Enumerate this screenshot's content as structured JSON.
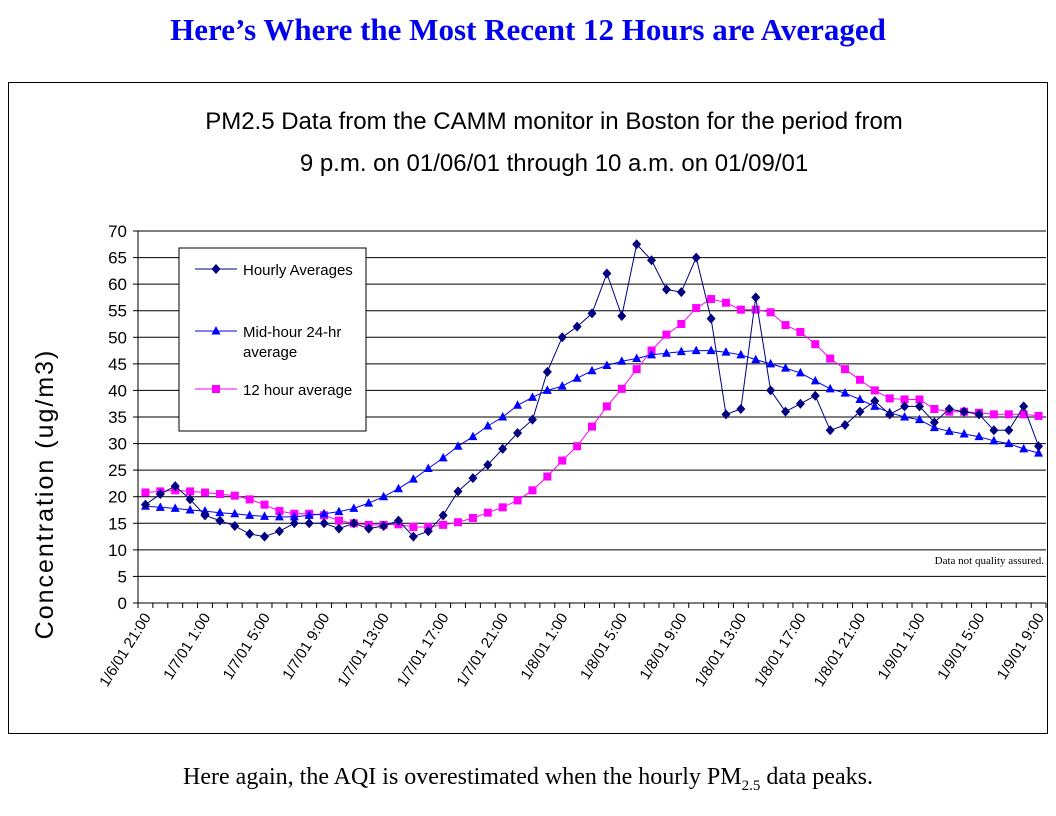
{
  "slide": {
    "title": "Here’s Where the Most Recent 12 Hours are Averaged",
    "caption_before": "Here again, the AQI is overestimated when the hourly PM",
    "caption_sub": "2.5",
    "caption_after": " data peaks."
  },
  "chart_data": {
    "type": "line",
    "title_line1": "PM2.5 Data from the CAMM monitor in Boston for the period from",
    "title_line2": "9 p.m. on 01/06/01 through 10 a.m. on 01/09/01",
    "xlabel": "",
    "ylabel": "Concentration (ug/m3)",
    "ylim": [
      0,
      70
    ],
    "yticks": [
      0,
      5,
      10,
      15,
      20,
      25,
      30,
      35,
      40,
      45,
      50,
      55,
      60,
      65,
      70
    ],
    "x_tick_labels": [
      "1/6/01 21:00",
      "1/7/01 1:00",
      "1/7/01 5:00",
      "1/7/01 9:00",
      "1/7/01 13:00",
      "1/7/01 17:00",
      "1/7/01 21:00",
      "1/8/01 1:00",
      "1/8/01 5:00",
      "1/8/01 9:00",
      "1/8/01 13:00",
      "1/8/01 17:00",
      "1/8/01 21:00",
      "1/9/01 1:00",
      "1/9/01 5:00",
      "1/9/01 9:00"
    ],
    "x_tick_interval_hours": 4,
    "x_start": "1/6/01 21:00",
    "grid": "horizontal",
    "legend_position": "top-left",
    "annotation": "Data not quality assured.",
    "series": [
      {
        "name": "Hourly Averages",
        "marker": "diamond",
        "color": "#000080",
        "values": [
          18.5,
          20.5,
          22,
          19.5,
          16.5,
          15.5,
          14.5,
          13,
          12.5,
          13.5,
          15,
          15,
          15,
          14,
          15,
          14,
          14.5,
          15.5,
          12.5,
          13.5,
          16.5,
          21,
          23.5,
          26,
          29,
          32,
          34.5,
          43.5,
          50,
          52,
          54.5,
          62,
          54,
          67.5,
          64.5,
          59,
          58.5,
          65,
          53.5,
          35.5,
          36.5,
          57.5,
          40,
          36,
          37.5,
          39,
          32.5,
          33.5,
          36,
          38,
          35.5,
          37,
          37,
          34,
          36.5,
          36,
          35.5,
          32.5,
          32.5,
          37,
          29.5
        ]
      },
      {
        "name": "Mid-hour 24-hr average",
        "marker": "triangle",
        "color": "#0000ff",
        "values": [
          18.2,
          18,
          17.8,
          17.5,
          17.3,
          17,
          16.8,
          16.5,
          16.3,
          16.2,
          16.2,
          16.5,
          16.8,
          17.2,
          17.8,
          18.8,
          20,
          21.5,
          23.3,
          25.3,
          27.3,
          29.5,
          31.3,
          33.3,
          35,
          37.2,
          38.7,
          40,
          40.8,
          42.3,
          43.7,
          44.7,
          45.5,
          46,
          46.7,
          47,
          47.3,
          47.5,
          47.5,
          47.2,
          46.7,
          45.8,
          45,
          44.2,
          43.3,
          41.8,
          40.3,
          39.5,
          38.3,
          37,
          35.8,
          35,
          34.5,
          33,
          32.3,
          31.8,
          31.3,
          30.5,
          30,
          29,
          28.2
        ]
      },
      {
        "name": "12 hour average",
        "marker": "square",
        "color": "#ff00ff",
        "values": [
          20.8,
          21,
          21.2,
          21,
          20.8,
          20.5,
          20.2,
          19.5,
          18.5,
          17.3,
          16.8,
          16.8,
          16.5,
          15.5,
          15,
          14.7,
          14.7,
          14.8,
          14.3,
          14.3,
          14.7,
          15.2,
          16,
          17,
          18,
          19.3,
          21.2,
          23.8,
          26.8,
          29.5,
          33.2,
          37,
          40.3,
          44,
          47.5,
          50.5,
          52.5,
          55.5,
          57.2,
          56.5,
          55.2,
          55.2,
          54.7,
          52.3,
          51,
          48.7,
          46,
          44,
          42,
          40,
          38.5,
          38.3,
          38.3,
          36.5,
          36,
          36,
          35.8,
          35.5,
          35.5,
          35.5,
          35.2
        ]
      }
    ]
  }
}
